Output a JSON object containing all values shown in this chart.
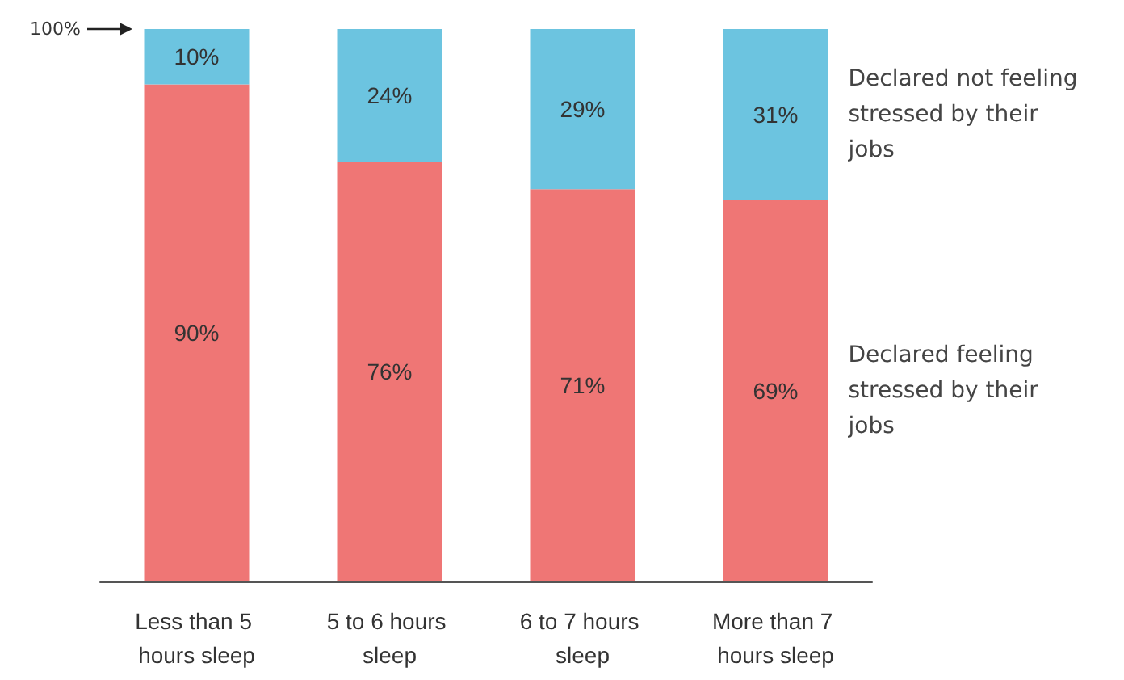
{
  "chart_data": {
    "type": "bar",
    "stacked": true,
    "categories": [
      "Less than 5 hours sleep",
      "5 to 6 hours sleep",
      "6 to 7 hours sleep",
      "More than 7 hours sleep"
    ],
    "series": [
      {
        "name": "Declared feeling stressed by their jobs",
        "color": "#ef7675",
        "values": [
          90,
          76,
          71,
          69
        ],
        "value_labels": [
          "90%",
          "76%",
          "71%",
          "69%"
        ]
      },
      {
        "name": "Declared not feeling stressed by their jobs",
        "color": "#6cc4e0",
        "values": [
          10,
          24,
          29,
          31
        ],
        "value_labels": [
          "10%",
          "24%",
          "29%",
          "31%"
        ]
      }
    ],
    "annotations": [
      "100%"
    ]
  }
}
